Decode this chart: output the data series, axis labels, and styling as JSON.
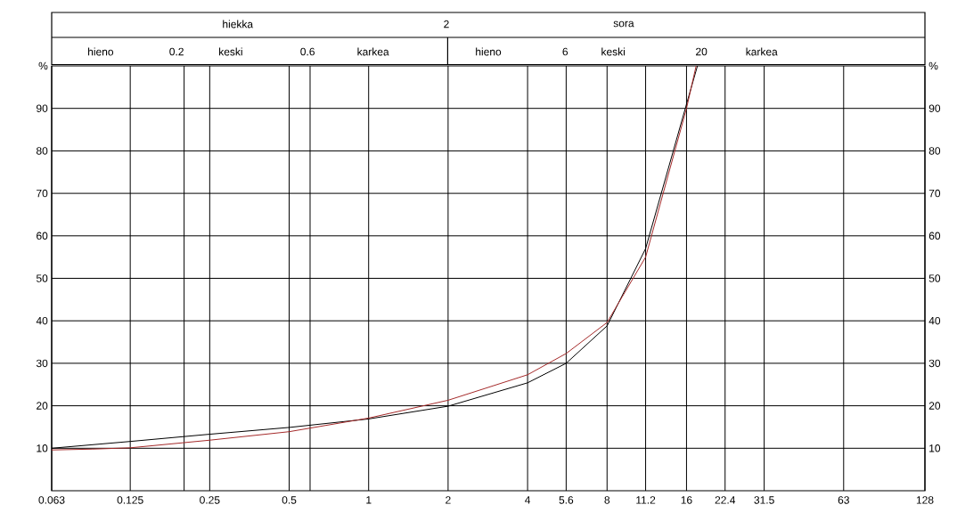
{
  "chart_data": {
    "type": "line",
    "ylabel": "%",
    "y2label": "%",
    "log": "x",
    "grid": true,
    "xlim": [
      0.063,
      128
    ],
    "ylim": [
      0,
      100
    ],
    "y2lim": [
      0,
      100
    ],
    "xticks": [
      0.063,
      0.125,
      {
        "value": 0.2,
        "label": null
      },
      0.25,
      0.5,
      {
        "value": 0.6,
        "label": null
      },
      1,
      2,
      4,
      5.6,
      8,
      11.2,
      16,
      22.4,
      31.5,
      63,
      128
    ],
    "yticks": [
      10,
      20,
      30,
      40,
      50,
      60,
      70,
      80,
      90
    ],
    "y2ticks": [
      10,
      20,
      30,
      40,
      50,
      60,
      70,
      80,
      90
    ],
    "annotations": [
      "hiekka",
      "2",
      "sora",
      "hieno",
      "0.2",
      "keski",
      "0.6",
      "karkea",
      "hieno",
      "6",
      "keski",
      "20",
      "karkea"
    ],
    "series": [
      {
        "color": "#000000",
        "x": [
          0.063,
          0.125,
          0.25,
          0.5,
          1,
          2,
          4,
          5.6,
          8,
          11.2,
          16,
          17.6
        ],
        "values": [
          10,
          11.6,
          13.3,
          14.9,
          16.9,
          19.9,
          25.4,
          30,
          38.8,
          57,
          91,
          100
        ]
      },
      {
        "color": "#a52a2a",
        "x": [
          0.063,
          0.09,
          0.125,
          0.25,
          0.5,
          1,
          2,
          4,
          5.6,
          8,
          11.2,
          16,
          17.4
        ],
        "values": [
          9.6,
          9.8,
          10.1,
          11.9,
          13.9,
          17.1,
          21.3,
          27.3,
          32.3,
          39.6,
          55,
          90,
          100
        ]
      }
    ]
  }
}
